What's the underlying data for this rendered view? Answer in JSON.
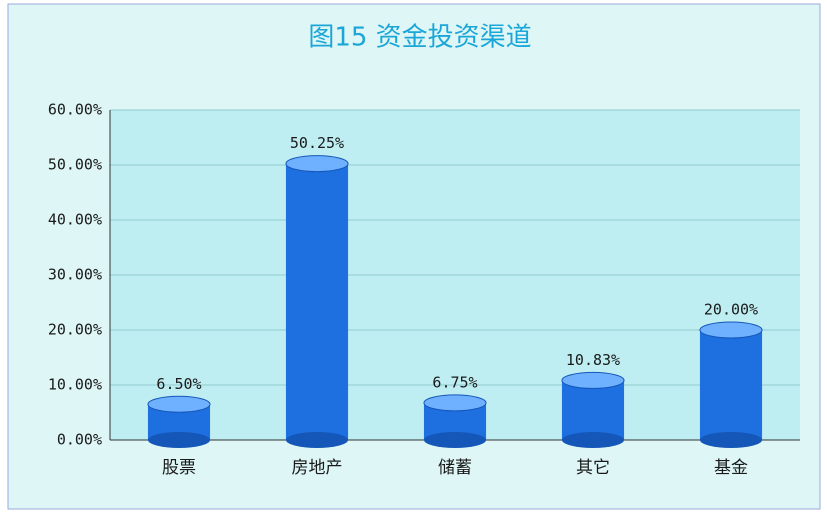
{
  "chart_data": {
    "type": "bar",
    "title": "图15 资金投资渠道",
    "categories": [
      "股票",
      "房地产",
      "储蓄",
      "其它",
      "基金"
    ],
    "values": [
      6.5,
      50.25,
      6.75,
      10.83,
      20.0
    ],
    "value_labels": [
      "6.50%",
      "50.25%",
      "6.75%",
      "10.83%",
      "20.00%"
    ],
    "color": "#1e6fe0",
    "ylim": [
      0,
      60
    ],
    "yticks": [
      {
        "value": 0,
        "label": "0.00%"
      },
      {
        "value": 10,
        "label": "10.00%"
      },
      {
        "value": 20,
        "label": "20.00%"
      },
      {
        "value": 30,
        "label": "30.00%"
      },
      {
        "value": 40,
        "label": "40.00%"
      },
      {
        "value": 50,
        "label": "50.00%"
      },
      {
        "value": 60,
        "label": "60.00%"
      }
    ],
    "grid": true
  }
}
